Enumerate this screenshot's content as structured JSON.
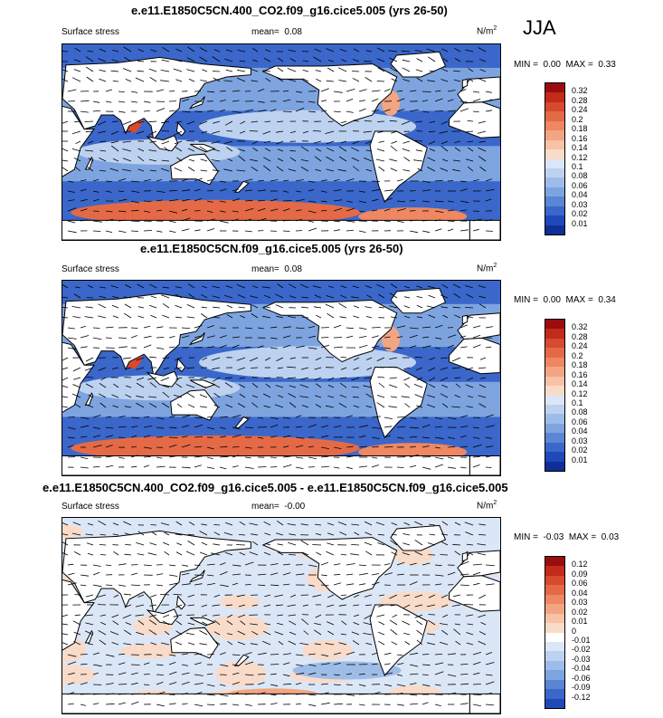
{
  "season": "JJA",
  "colors": {
    "pos": [
      "#f9dbc9",
      "#f7c2a6",
      "#f3a583",
      "#ee8762",
      "#e46a47",
      "#d64a30",
      "#c22a1c",
      "#9b0c0f"
    ],
    "neg": [
      "#dbe7f7",
      "#bdd2f0",
      "#9ebce8",
      "#7ea4e0",
      "#5a86d5",
      "#3a67c9",
      "#1f48b9",
      "#102e97",
      "#09186c"
    ],
    "land": "#ffffff",
    "frame": "#000000"
  },
  "panels": [
    {
      "title": "e.e11.E1850C5CN.400_CO2.f09_g16.cice5.005 (yrs 26-50)",
      "variable": "Surface stress",
      "mean_label": "mean=",
      "mean": "0.08",
      "units_base": "N/m",
      "units_exp": "2",
      "min_label": "MIN =",
      "min": "0.00",
      "max_label": "MAX =",
      "max": "0.33",
      "colorbar_labels": [
        "0.32",
        "0.28",
        "0.24",
        "0.2",
        "0.18",
        "0.16",
        "0.14",
        "0.12",
        "0.1",
        "0.08",
        "0.06",
        "0.04",
        "0.03",
        "0.02",
        "0.01"
      ]
    },
    {
      "title": "e.e11.E1850C5CN.f09_g16.cice5.005 (yrs 26-50)",
      "variable": "Surface stress",
      "mean_label": "mean=",
      "mean": "0.08",
      "units_base": "N/m",
      "units_exp": "2",
      "min_label": "MIN =",
      "min": "0.00",
      "max_label": "MAX =",
      "max": "0.34",
      "colorbar_labels": [
        "0.32",
        "0.28",
        "0.24",
        "0.2",
        "0.18",
        "0.16",
        "0.14",
        "0.12",
        "0.1",
        "0.08",
        "0.06",
        "0.04",
        "0.03",
        "0.02",
        "0.01"
      ]
    },
    {
      "title": "e.e11.E1850C5CN.400_CO2.f09_g16.cice5.005 - e.e11.E1850C5CN.f09_g16.cice5.005",
      "variable": "Surface stress",
      "mean_label": "mean=",
      "mean": "-0.00",
      "units_base": "N/m",
      "units_exp": "2",
      "min_label": "MIN =",
      "min": "-0.03",
      "max_label": "MAX =",
      "max": "0.03",
      "colorbar_labels": [
        "0.12",
        "0.09",
        "0.06",
        "0.04",
        "0.03",
        "0.02",
        "0.01",
        "0",
        "-0.01",
        "-0.02",
        "-0.03",
        "-0.04",
        "-0.06",
        "-0.09",
        "-0.12"
      ]
    }
  ],
  "chart_data": [
    {
      "type": "heatmap",
      "title": "e.e11.E1850C5CN.400_CO2.f09_g16.cice5.005 (yrs 26-50)",
      "variable": "Surface stress",
      "units": "N/m2",
      "mean": 0.08,
      "min": 0.0,
      "max": 0.33,
      "colorbar_levels": [
        0.01,
        0.02,
        0.03,
        0.04,
        0.06,
        0.08,
        0.1,
        0.12,
        0.14,
        0.16,
        0.18,
        0.2,
        0.24,
        0.28,
        0.32
      ],
      "overlay": "wind stress vectors"
    },
    {
      "type": "heatmap",
      "title": "e.e11.E1850C5CN.f09_g16.cice5.005 (yrs 26-50)",
      "variable": "Surface stress",
      "units": "N/m2",
      "mean": 0.08,
      "min": 0.0,
      "max": 0.34,
      "colorbar_levels": [
        0.01,
        0.02,
        0.03,
        0.04,
        0.06,
        0.08,
        0.1,
        0.12,
        0.14,
        0.16,
        0.18,
        0.2,
        0.24,
        0.28,
        0.32
      ],
      "overlay": "wind stress vectors"
    },
    {
      "type": "heatmap",
      "title": "e.e11.E1850C5CN.400_CO2.f09_g16.cice5.005 - e.e11.E1850C5CN.f09_g16.cice5.005",
      "variable": "Surface stress",
      "units": "N/m2",
      "mean": -0.0,
      "min": -0.03,
      "max": 0.03,
      "colorbar_levels": [
        -0.12,
        -0.09,
        -0.06,
        -0.04,
        -0.03,
        -0.02,
        -0.01,
        0,
        0.01,
        0.02,
        0.03,
        0.04,
        0.06,
        0.09,
        0.12
      ],
      "overlay": "wind stress difference vectors"
    }
  ]
}
